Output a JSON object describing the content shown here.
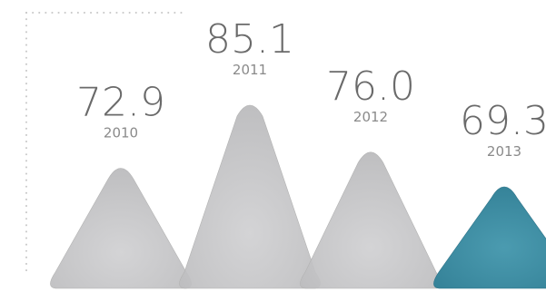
{
  "chart_data": {
    "type": "bar",
    "categories": [
      "2010",
      "2011",
      "2012",
      "2013"
    ],
    "values": [
      72.9,
      85.1,
      76.0,
      69.3
    ],
    "value_labels": [
      "72.9",
      "85.1",
      "76.0",
      "69.3"
    ],
    "highlight_index": 3,
    "colors": {
      "bar": "#c4c4c4",
      "bar_edge": "#b2b2b2",
      "highlight": "#3e8ea3",
      "highlight_edge": "#2f7388",
      "text": "#6a6a6a",
      "grid_dots": "#c8c8c8"
    }
  }
}
